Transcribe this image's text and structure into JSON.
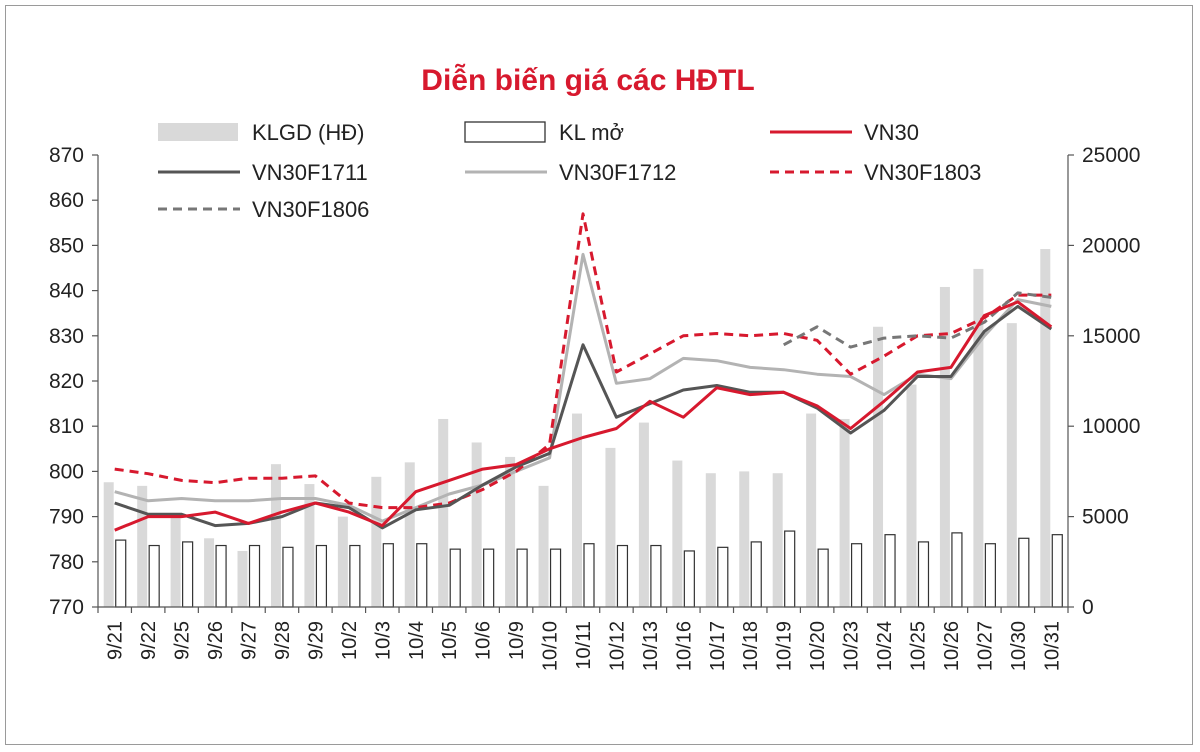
{
  "chart_data": {
    "type": "bar+line",
    "title": "Diễn biến giá các HĐTL",
    "categories": [
      "9/21",
      "9/22",
      "9/25",
      "9/26",
      "9/27",
      "9/28",
      "9/29",
      "10/2",
      "10/3",
      "10/4",
      "10/5",
      "10/6",
      "10/9",
      "10/10",
      "10/11",
      "10/12",
      "10/13",
      "10/16",
      "10/17",
      "10/18",
      "10/19",
      "10/20",
      "10/23",
      "10/24",
      "10/25",
      "10/26",
      "10/27",
      "10/30",
      "10/31"
    ],
    "y_left": {
      "ylim": [
        770,
        870
      ],
      "ticks": [
        "870",
        "860",
        "850",
        "840",
        "830",
        "820",
        "810",
        "800",
        "790",
        "780",
        "770"
      ]
    },
    "y_right": {
      "ylim": [
        0,
        25000
      ],
      "ticks": [
        "25000",
        "20000",
        "15000",
        "10000",
        "5000",
        "0"
      ]
    },
    "bar_series": [
      {
        "name": "KLGD (HĐ)",
        "axis": "right",
        "color": "#d9d9d9",
        "values": [
          6900,
          6700,
          5000,
          3800,
          3100,
          7900,
          6800,
          5000,
          7200,
          8000,
          10400,
          9100,
          8300,
          6700,
          10700,
          8800,
          10200,
          8100,
          7400,
          7500,
          7400,
          10700,
          10400,
          15500,
          12300,
          17700,
          18700,
          15700,
          19800
        ]
      },
      {
        "name": "KL mở",
        "axis": "right",
        "color": "#ffffff",
        "stroke": "#333333",
        "values": [
          3700,
          3400,
          3600,
          3400,
          3400,
          3300,
          3400,
          3400,
          3500,
          3500,
          3200,
          3200,
          3200,
          3200,
          3500,
          3400,
          3400,
          3100,
          3300,
          3600,
          4200,
          3200,
          3500,
          4000,
          3600,
          4100,
          3500,
          3800,
          4000
        ]
      }
    ],
    "line_series": [
      {
        "name": "VN30",
        "color": "#d7192e",
        "dash": "solid",
        "values": [
          787,
          790,
          790,
          791,
          788.5,
          791,
          793,
          791,
          788,
          795.5,
          798,
          800.5,
          801.5,
          805,
          807.5,
          809.5,
          815.5,
          812,
          818.5,
          817,
          817.5,
          814.5,
          809.5,
          815.5,
          822,
          823,
          834.5,
          837.5,
          832
        ]
      },
      {
        "name": "VN30F1711",
        "color": "#555555",
        "dash": "solid",
        "values": [
          793,
          790.5,
          790.5,
          788,
          788.5,
          790,
          793,
          792,
          787.5,
          791.5,
          792.5,
          797,
          801,
          804,
          828,
          812,
          815,
          818,
          819,
          817.5,
          817.5,
          814,
          808.5,
          813.5,
          821,
          821,
          831,
          836.5,
          831.5
        ]
      },
      {
        "name": "VN30F1712",
        "color": "#b3b3b3",
        "dash": "solid",
        "values": [
          795.5,
          793.5,
          794,
          793.5,
          793.5,
          794,
          794,
          792.5,
          789,
          792,
          795,
          797,
          800,
          803,
          848,
          819.5,
          820.5,
          825,
          824.5,
          823,
          822.5,
          821.5,
          821,
          817,
          821.5,
          820.5,
          830,
          838,
          836.5
        ]
      },
      {
        "name": "VN30F1803",
        "color": "#d7192e",
        "dash": "dashed",
        "values": [
          800.5,
          799.5,
          798,
          797.5,
          798.5,
          798.5,
          799,
          793,
          792,
          792,
          793,
          796,
          800,
          806,
          857,
          822,
          826,
          830,
          830.5,
          830,
          830.5,
          829,
          821.5,
          825.5,
          830,
          830.5,
          834,
          839,
          839
        ]
      },
      {
        "name": "VN30F1806",
        "color": "#777777",
        "dash": "dashed",
        "values": [
          null,
          null,
          null,
          null,
          null,
          null,
          null,
          null,
          null,
          null,
          null,
          null,
          null,
          null,
          null,
          null,
          null,
          null,
          null,
          null,
          828,
          832,
          827.5,
          829.5,
          830,
          829.5,
          833,
          839.5,
          838.5
        ]
      }
    ],
    "legend": [
      {
        "label": "KLGD (HĐ)",
        "kind": "bar-fill"
      },
      {
        "label": "KL mở",
        "kind": "bar-outline"
      },
      {
        "label": "VN30",
        "kind": "line-red"
      },
      {
        "label": "VN30F1711",
        "kind": "line-dark"
      },
      {
        "label": "VN30F1712",
        "kind": "line-light"
      },
      {
        "label": "VN30F1803",
        "kind": "dash-red"
      },
      {
        "label": "VN30F1806",
        "kind": "dash-gray"
      }
    ],
    "legend_position": "top-left inside plot",
    "grid": false
  }
}
